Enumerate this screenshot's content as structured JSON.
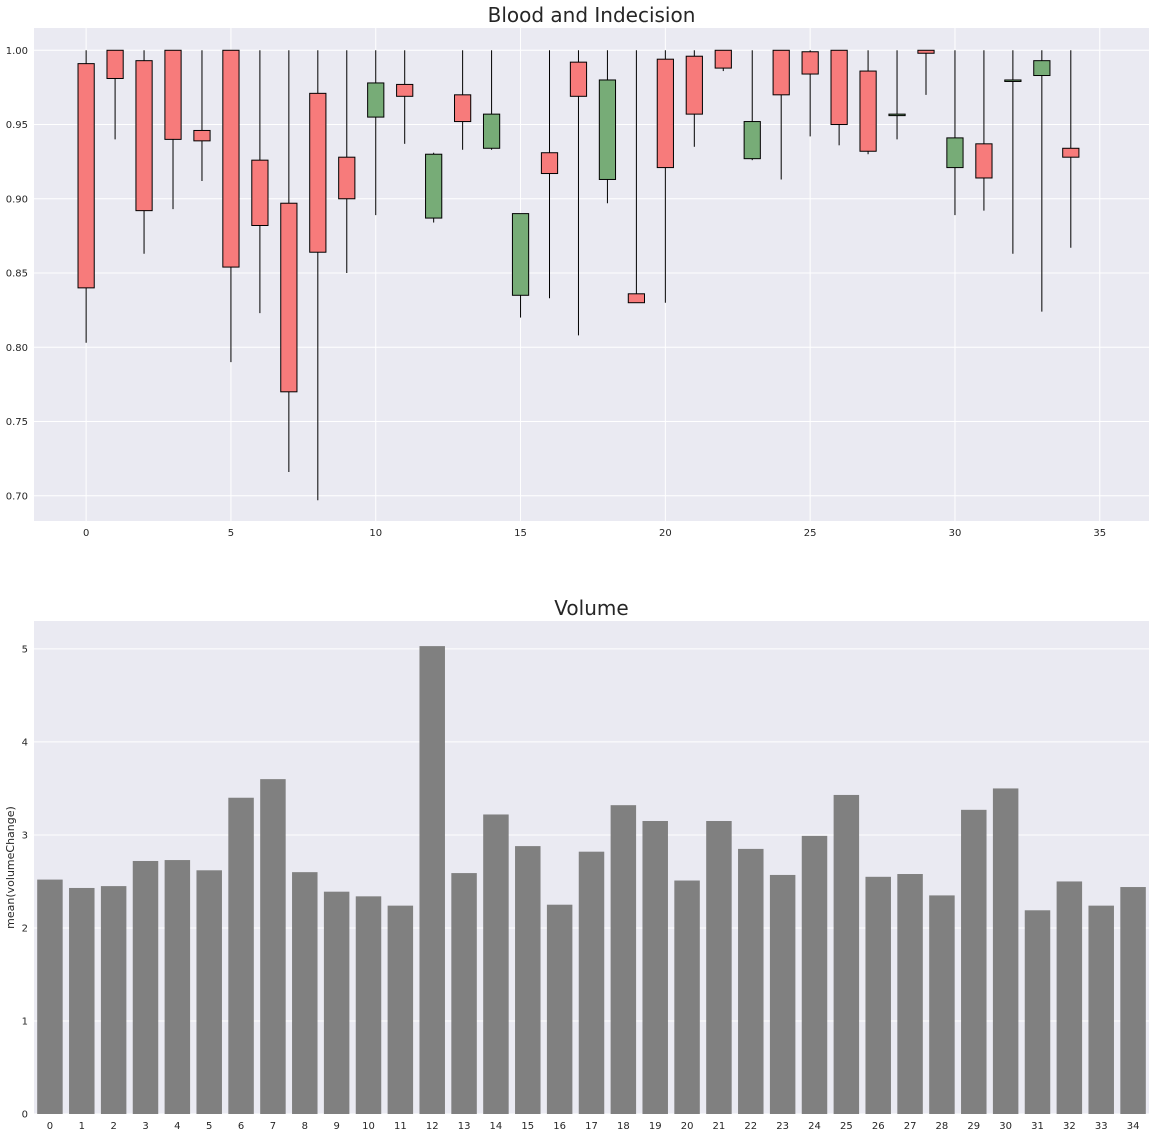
{
  "colors": {
    "background": "#eaeaf2",
    "grid": "#ffffff",
    "up": "#77ac77",
    "down": "#f77b7b",
    "edge": "#000000",
    "bar": "#808080"
  },
  "chart_data": [
    {
      "type": "candlestick",
      "title": "Blood and Indecision",
      "xlabel": "",
      "ylabel": "",
      "xlim": [
        -1.8,
        36.7
      ],
      "ylim": [
        0.683,
        1.015
      ],
      "xticks": [
        "0",
        "5",
        "10",
        "15",
        "20",
        "25",
        "30",
        "35"
      ],
      "yticks": [
        "0.70",
        "0.75",
        "0.80",
        "0.85",
        "0.90",
        "0.95",
        "1.00"
      ],
      "grid": true,
      "open": [
        0.991,
        1.0,
        0.993,
        1.0,
        0.946,
        1.0,
        0.926,
        0.897,
        0.971,
        0.928,
        0.955,
        0.977,
        0.887,
        0.97,
        0.934,
        0.835,
        0.931,
        0.992,
        0.913,
        0.836,
        0.994,
        0.996,
        1.0,
        0.927,
        1.0,
        0.999,
        1.0,
        0.986,
        0.956,
        1.0,
        0.921,
        0.937,
        0.98,
        0.983,
        0.934
      ],
      "high": [
        1.0,
        1.0,
        1.0,
        1.0,
        1.0,
        1.0,
        1.0,
        1.0,
        1.0,
        1.0,
        1.0,
        1.0,
        0.931,
        1.0,
        1.0,
        0.89,
        1.0,
        1.0,
        1.0,
        1.0,
        1.0,
        1.0,
        1.0,
        1.0,
        1.0,
        1.0,
        1.0,
        1.0,
        1.0,
        1.0,
        1.0,
        1.0,
        1.0,
        1.0,
        1.0
      ],
      "low": [
        0.803,
        0.94,
        0.863,
        0.893,
        0.912,
        0.79,
        0.823,
        0.716,
        0.697,
        0.85,
        0.889,
        0.937,
        0.884,
        0.933,
        0.933,
        0.82,
        0.833,
        0.808,
        0.897,
        0.83,
        0.83,
        0.935,
        0.986,
        0.926,
        0.913,
        0.942,
        0.936,
        0.93,
        0.94,
        0.97,
        0.889,
        0.892,
        0.863,
        0.824,
        0.867
      ],
      "close": [
        0.84,
        0.981,
        0.892,
        0.94,
        0.939,
        0.854,
        0.882,
        0.77,
        0.864,
        0.9,
        0.978,
        0.969,
        0.93,
        0.952,
        0.957,
        0.89,
        0.917,
        0.969,
        0.98,
        0.83,
        0.921,
        0.957,
        0.988,
        0.952,
        0.97,
        0.984,
        0.95,
        0.932,
        0.957,
        0.998,
        0.941,
        0.914,
        0.98,
        0.993,
        0.928
      ]
    },
    {
      "type": "bar",
      "title": "Volume",
      "xlabel": "",
      "ylabel": "mean(volumeChange)",
      "ylim": [
        0,
        5.3
      ],
      "yticks": [
        "0",
        "1",
        "2",
        "3",
        "4",
        "5"
      ],
      "grid": true,
      "categories": [
        "0",
        "1",
        "2",
        "3",
        "4",
        "5",
        "6",
        "7",
        "8",
        "9",
        "10",
        "11",
        "12",
        "13",
        "14",
        "15",
        "16",
        "17",
        "18",
        "19",
        "20",
        "21",
        "22",
        "23",
        "24",
        "25",
        "26",
        "27",
        "28",
        "29",
        "30",
        "31",
        "32",
        "33",
        "34"
      ],
      "values": [
        2.52,
        2.43,
        2.45,
        2.72,
        2.73,
        2.62,
        3.4,
        3.6,
        2.6,
        2.39,
        2.34,
        2.24,
        5.03,
        2.59,
        3.22,
        2.88,
        2.25,
        2.82,
        3.32,
        3.15,
        2.51,
        3.15,
        2.85,
        2.57,
        2.99,
        3.43,
        2.55,
        2.58,
        2.35,
        3.27,
        3.5,
        2.19,
        2.5,
        2.24,
        2.44
      ]
    }
  ]
}
